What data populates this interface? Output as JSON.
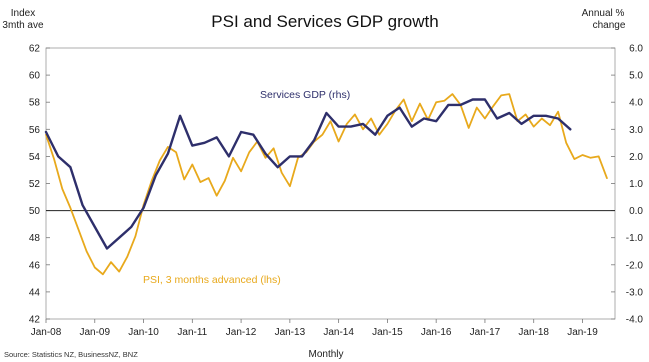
{
  "chart_data": {
    "type": "line",
    "title": "PSI and Services GDP growth",
    "left_axis_label": [
      "Index",
      "3mth ave"
    ],
    "right_axis_label": [
      "Annual %",
      "change"
    ],
    "xlabel": "Monthly",
    "source": "Source: Statistics NZ, BusinessNZ, BNZ",
    "left_ylim": [
      42,
      62
    ],
    "left_ticks": [
      "62",
      "60",
      "58",
      "56",
      "54",
      "52",
      "50",
      "48",
      "46",
      "44",
      "42"
    ],
    "right_ylim": [
      -4.0,
      6.0
    ],
    "right_ticks": [
      "6.0",
      "5.0",
      "4.0",
      "3.0",
      "2.0",
      "1.0",
      "0.0",
      "-1.0",
      "-2.0",
      "-3.0",
      "-4.0"
    ],
    "x_ticks": [
      "Jan-08",
      "Jan-09",
      "Jan-10",
      "Jan-11",
      "Jan-12",
      "Jan-13",
      "Jan-14",
      "Jan-15",
      "Jan-16",
      "Jan-17",
      "Jan-18",
      "Jan-19"
    ],
    "reference_line": 50,
    "series": [
      {
        "name": "Services GDP (rhs)",
        "axis": "right",
        "color": "#2e2f6b",
        "points": [
          [
            "2008-01",
            2.9
          ],
          [
            "2008-04",
            2.0
          ],
          [
            "2008-07",
            1.6
          ],
          [
            "2008-10",
            0.2
          ],
          [
            "2009-01",
            -0.6
          ],
          [
            "2009-04",
            -1.4
          ],
          [
            "2009-07",
            -1.0
          ],
          [
            "2009-10",
            -0.6
          ],
          [
            "2010-01",
            0.1
          ],
          [
            "2010-04",
            1.3
          ],
          [
            "2010-07",
            2.1
          ],
          [
            "2010-10",
            3.5
          ],
          [
            "2011-01",
            2.4
          ],
          [
            "2011-04",
            2.5
          ],
          [
            "2011-07",
            2.7
          ],
          [
            "2011-10",
            2.0
          ],
          [
            "2012-01",
            2.9
          ],
          [
            "2012-04",
            2.8
          ],
          [
            "2012-07",
            2.1
          ],
          [
            "2012-10",
            1.6
          ],
          [
            "2013-01",
            2.0
          ],
          [
            "2013-04",
            2.0
          ],
          [
            "2013-07",
            2.6
          ],
          [
            "2013-10",
            3.6
          ],
          [
            "2014-01",
            3.1
          ],
          [
            "2014-04",
            3.1
          ],
          [
            "2014-07",
            3.2
          ],
          [
            "2014-10",
            2.8
          ],
          [
            "2015-01",
            3.5
          ],
          [
            "2015-04",
            3.8
          ],
          [
            "2015-07",
            3.1
          ],
          [
            "2015-10",
            3.4
          ],
          [
            "2016-01",
            3.3
          ],
          [
            "2016-04",
            3.9
          ],
          [
            "2016-07",
            3.9
          ],
          [
            "2016-10",
            4.1
          ],
          [
            "2017-01",
            4.1
          ],
          [
            "2017-04",
            3.4
          ],
          [
            "2017-07",
            3.6
          ],
          [
            "2017-10",
            3.2
          ],
          [
            "2018-01",
            3.5
          ],
          [
            "2018-04",
            3.5
          ],
          [
            "2018-07",
            3.4
          ],
          [
            "2018-10",
            3.0
          ]
        ]
      },
      {
        "name": "PSI, 3 months advanced (lhs)",
        "axis": "left",
        "color": "#e8a91c",
        "points": [
          [
            "2008-01",
            55.6
          ],
          [
            "2008-03",
            53.8
          ],
          [
            "2008-05",
            51.6
          ],
          [
            "2008-07",
            50.2
          ],
          [
            "2008-09",
            48.6
          ],
          [
            "2008-11",
            47.0
          ],
          [
            "2009-01",
            45.8
          ],
          [
            "2009-03",
            45.3
          ],
          [
            "2009-05",
            46.2
          ],
          [
            "2009-07",
            45.5
          ],
          [
            "2009-09",
            46.6
          ],
          [
            "2009-11",
            48.1
          ],
          [
            "2010-01",
            50.4
          ],
          [
            "2010-03",
            52.2
          ],
          [
            "2010-05",
            53.7
          ],
          [
            "2010-07",
            54.7
          ],
          [
            "2010-09",
            54.3
          ],
          [
            "2010-11",
            52.3
          ],
          [
            "2011-01",
            53.4
          ],
          [
            "2011-03",
            52.1
          ],
          [
            "2011-05",
            52.4
          ],
          [
            "2011-07",
            51.1
          ],
          [
            "2011-09",
            52.2
          ],
          [
            "2011-11",
            53.9
          ],
          [
            "2012-01",
            52.9
          ],
          [
            "2012-03",
            54.3
          ],
          [
            "2012-05",
            55.1
          ],
          [
            "2012-07",
            53.9
          ],
          [
            "2012-09",
            54.6
          ],
          [
            "2012-11",
            52.8
          ],
          [
            "2013-01",
            51.8
          ],
          [
            "2013-03",
            53.9
          ],
          [
            "2013-05",
            54.3
          ],
          [
            "2013-07",
            55.1
          ],
          [
            "2013-09",
            55.6
          ],
          [
            "2013-11",
            56.6
          ],
          [
            "2014-01",
            55.1
          ],
          [
            "2014-03",
            56.4
          ],
          [
            "2014-05",
            57.1
          ],
          [
            "2014-07",
            56.0
          ],
          [
            "2014-09",
            56.8
          ],
          [
            "2014-11",
            55.6
          ],
          [
            "2015-01",
            56.4
          ],
          [
            "2015-03",
            57.4
          ],
          [
            "2015-05",
            58.2
          ],
          [
            "2015-07",
            56.6
          ],
          [
            "2015-09",
            57.9
          ],
          [
            "2015-11",
            56.7
          ],
          [
            "2016-01",
            58.0
          ],
          [
            "2016-03",
            58.1
          ],
          [
            "2016-05",
            58.6
          ],
          [
            "2016-07",
            57.8
          ],
          [
            "2016-09",
            56.1
          ],
          [
            "2016-11",
            57.6
          ],
          [
            "2017-01",
            56.8
          ],
          [
            "2017-03",
            57.7
          ],
          [
            "2017-05",
            58.5
          ],
          [
            "2017-07",
            58.6
          ],
          [
            "2017-09",
            56.6
          ],
          [
            "2017-11",
            57.1
          ],
          [
            "2018-01",
            56.2
          ],
          [
            "2018-03",
            56.8
          ],
          [
            "2018-05",
            56.3
          ],
          [
            "2018-07",
            57.3
          ],
          [
            "2018-09",
            55.0
          ],
          [
            "2018-11",
            53.8
          ],
          [
            "2019-01",
            54.1
          ],
          [
            "2019-03",
            53.9
          ],
          [
            "2019-05",
            54.0
          ],
          [
            "2019-07",
            52.4
          ]
        ]
      }
    ]
  }
}
